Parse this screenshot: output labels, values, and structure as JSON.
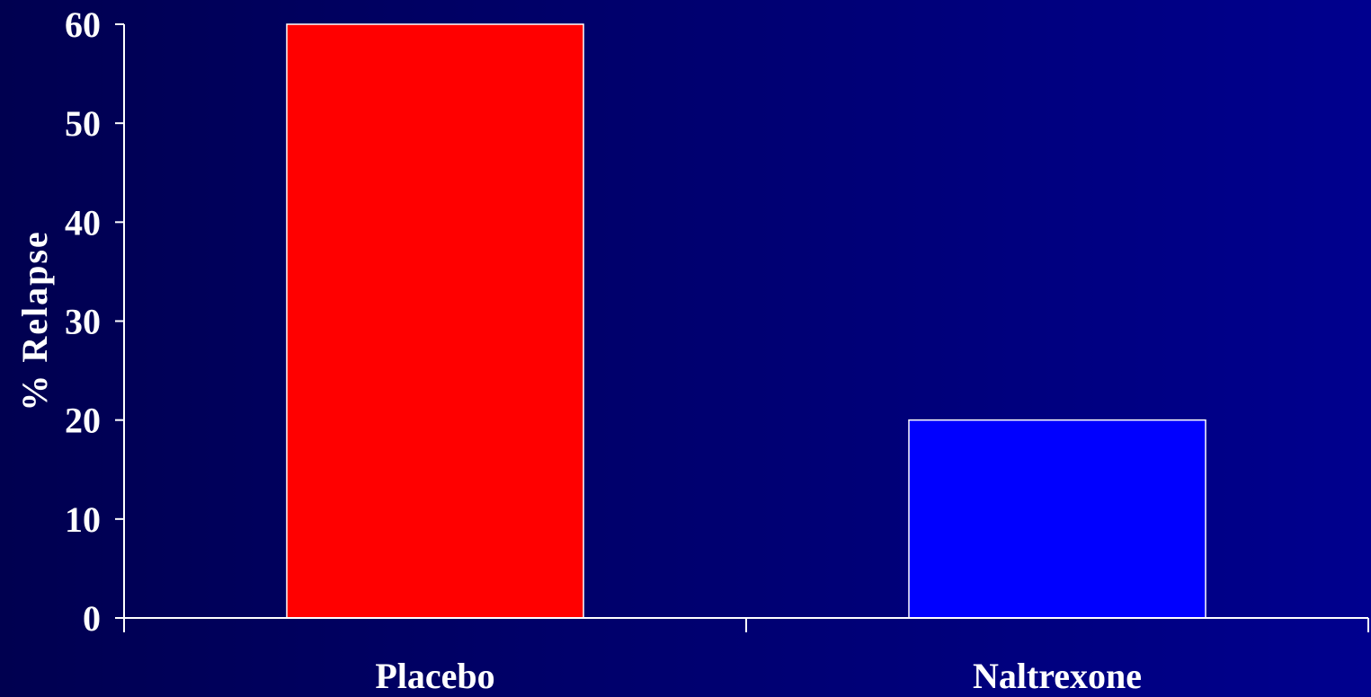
{
  "chart_data": {
    "type": "bar",
    "categories": [
      "Placebo",
      "Naltrexone"
    ],
    "values": [
      60,
      20
    ],
    "bar_colors": [
      "#ff0000",
      "#0000ff"
    ],
    "ylabel": "% Relapse",
    "xlabel": "",
    "title": "",
    "ylim": [
      0,
      60
    ],
    "yticks": [
      0,
      10,
      20,
      30,
      40,
      50,
      60
    ],
    "grid": false,
    "legend": "none"
  },
  "colors": {
    "axis": "#ffffff",
    "bar_border": "#ffffff"
  }
}
